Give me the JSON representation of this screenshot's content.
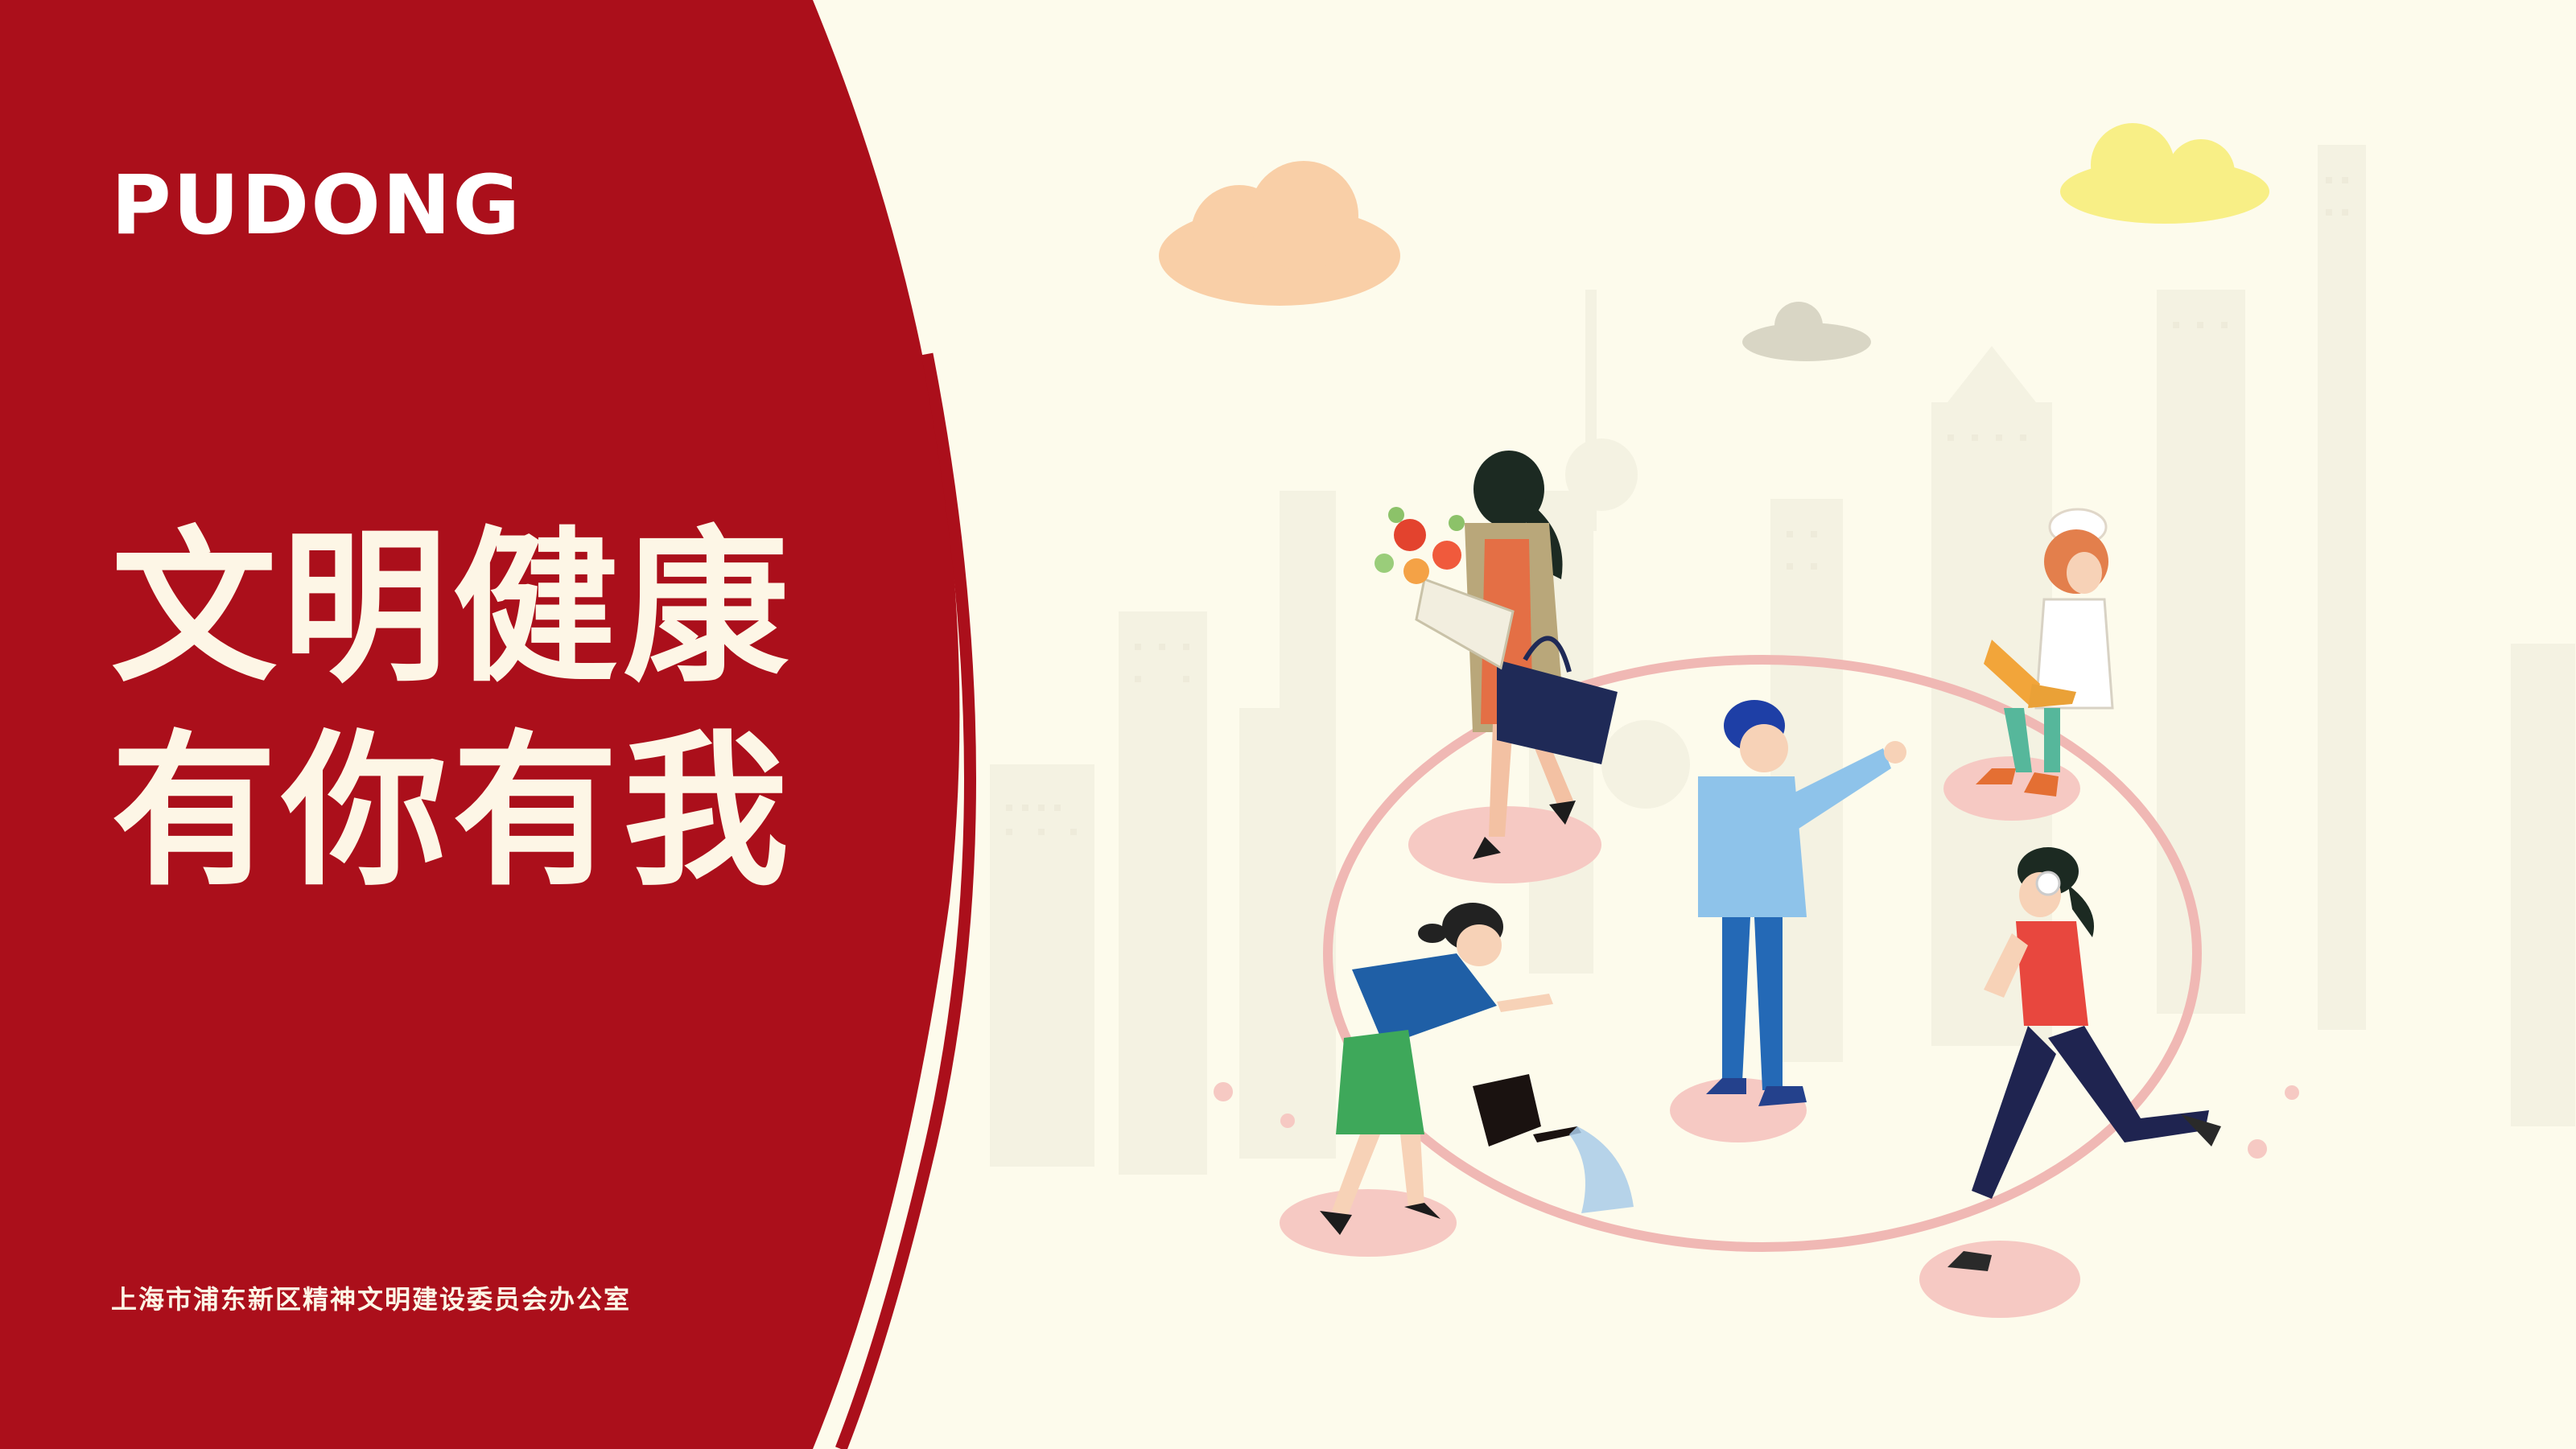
{
  "brand": {
    "logo_text": "PUDONG"
  },
  "headline": {
    "line1": "文明健康",
    "line2": "有你有我"
  },
  "footer": {
    "organization": "上海市浦东新区精神文明建设委员会办公室"
  },
  "colors": {
    "panel_red": "#AB0F1B",
    "background_cream": "#FDFBEC",
    "headline_cream": "#FDF6E6",
    "ring_pink": "#F0B8B4",
    "cloud_peach": "#F9CFA7",
    "cloud_yellow": "#F8EF86",
    "cloud_grey": "#D9D6C5"
  },
  "illustration": {
    "figures": [
      "woman-with-bouquet-and-handbag-icon",
      "nurse-with-laptop-icon",
      "man-pointing-icon",
      "woman-watering-can-icon",
      "runner-with-headphones-icon"
    ],
    "skyline": "shanghai-skyline-icon",
    "clouds": [
      "cloud-peach-icon",
      "cloud-yellow-icon",
      "cloud-grey-icon"
    ]
  }
}
